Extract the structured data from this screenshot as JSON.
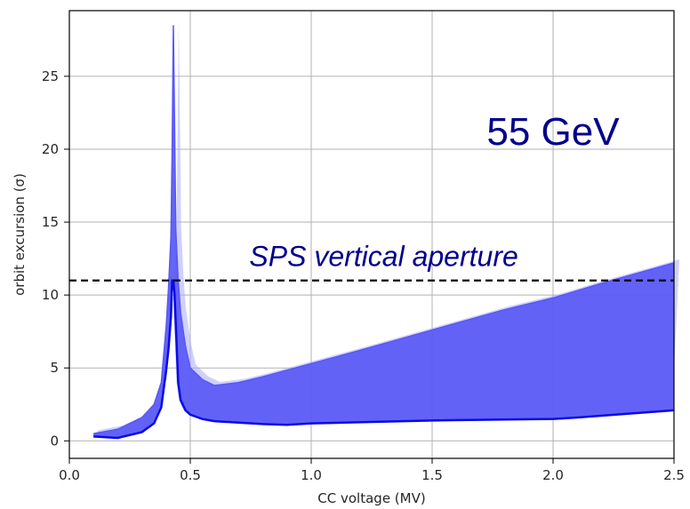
{
  "chart_data": {
    "type": "area",
    "xlabel": "CC voltage (MV)",
    "ylabel": "orbit excursion (σ)",
    "xlim": [
      0.0,
      2.5
    ],
    "ylim": [
      -1.2,
      29.5
    ],
    "xticks": [
      0.0,
      0.5,
      1.0,
      1.5,
      2.0,
      2.5
    ],
    "xtick_labels": [
      "0.0",
      "0.5",
      "1.0",
      "1.5",
      "2.0",
      "2.5"
    ],
    "yticks": [
      0,
      5,
      10,
      15,
      20,
      25
    ],
    "ytick_labels": [
      "0",
      "5",
      "10",
      "15",
      "20",
      "25"
    ],
    "grid": true,
    "colors": {
      "band": "#5858f5",
      "band_light": "#a9a9fb",
      "line": "#0a0ae6",
      "annotation": "#00008b",
      "reference": "#000000"
    },
    "series": [
      {
        "role": "upper-envelope",
        "x": [
          0.1,
          0.2,
          0.3,
          0.35,
          0.38,
          0.4,
          0.41,
          0.42,
          0.425,
          0.43,
          0.435,
          0.44,
          0.45,
          0.46,
          0.48,
          0.5,
          0.55,
          0.6,
          0.7,
          0.8,
          1.0,
          1.2,
          1.5,
          1.8,
          2.0,
          2.2,
          2.5
        ],
        "y": [
          0.5,
          0.8,
          1.6,
          2.5,
          4.0,
          7.8,
          10.5,
          14.0,
          20.0,
          28.5,
          22.0,
          14.5,
          11.0,
          8.8,
          6.5,
          5.0,
          4.2,
          3.8,
          4.0,
          4.4,
          5.3,
          6.2,
          7.6,
          9.0,
          9.8,
          10.8,
          12.2
        ]
      },
      {
        "role": "lower-envelope",
        "x": [
          0.1,
          0.2,
          0.3,
          0.35,
          0.38,
          0.4,
          0.41,
          0.42,
          0.425,
          0.43,
          0.435,
          0.44,
          0.45,
          0.46,
          0.48,
          0.5,
          0.55,
          0.6,
          0.7,
          0.8,
          0.9,
          1.0,
          1.5,
          2.0,
          2.1,
          2.5
        ],
        "y": [
          0.3,
          0.2,
          0.6,
          1.2,
          2.3,
          4.8,
          6.3,
          8.5,
          11.0,
          11.0,
          10.0,
          8.0,
          4.0,
          2.8,
          2.1,
          1.8,
          1.5,
          1.35,
          1.25,
          1.15,
          1.1,
          1.2,
          1.4,
          1.5,
          1.6,
          2.1
        ]
      }
    ],
    "reference_line": {
      "y": 11.0,
      "style": "dashed"
    },
    "annotations": [
      {
        "text": "55 GeV",
        "x": 2.0,
        "y": 20.3
      },
      {
        "text": "SPS vertical aperture",
        "x": 1.3,
        "y": 12.0
      }
    ]
  }
}
